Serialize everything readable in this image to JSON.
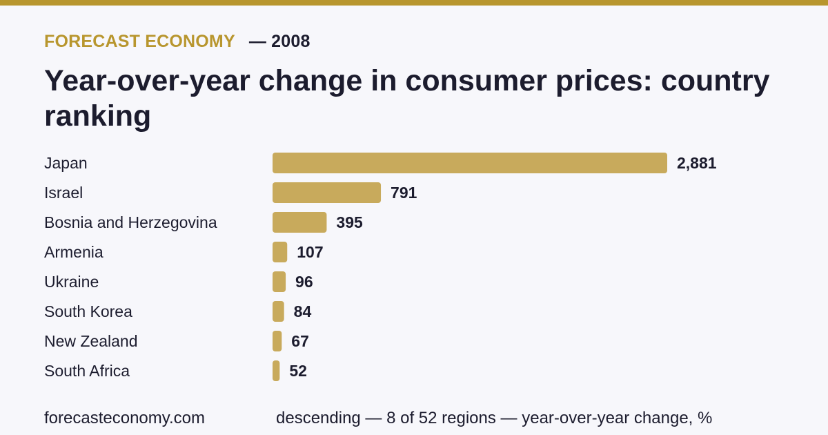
{
  "header": {
    "brand": "FORECAST ECONOMY",
    "year_tag": "— 2008",
    "title": "Year-over-year change in consumer prices: country ranking"
  },
  "footer": {
    "source": "forecasteconomy.com",
    "note": "descending — 8 of 52 regions — year-over-year change, %"
  },
  "colors": {
    "accent": "#b8962e",
    "bar": "#c8aa5c",
    "text": "#1c1c2e",
    "background": "#f7f7fb"
  },
  "chart_data": {
    "type": "bar",
    "orientation": "horizontal",
    "sort": "descending",
    "categories": [
      "Japan",
      "Israel",
      "Bosnia and Herzegovina",
      "Armenia",
      "Ukraine",
      "South Korea",
      "New Zealand",
      "South Africa"
    ],
    "values": [
      2881,
      791,
      395,
      107,
      96,
      84,
      67,
      52
    ],
    "value_labels": [
      "2,881",
      "791",
      "395",
      "107",
      "96",
      "84",
      "67",
      "52"
    ],
    "xlim": [
      0,
      2881
    ],
    "grid": false,
    "legend": "none"
  }
}
